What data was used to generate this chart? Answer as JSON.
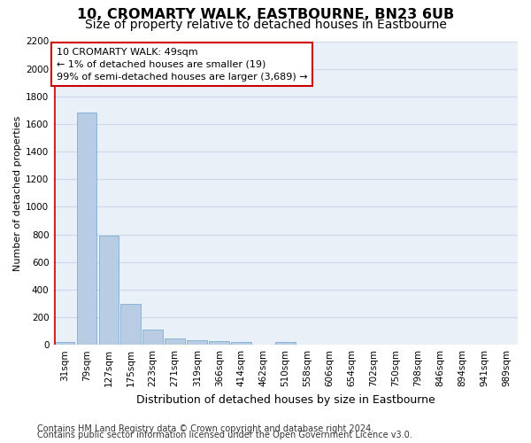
{
  "title": "10, CROMARTY WALK, EASTBOURNE, BN23 6UB",
  "subtitle": "Size of property relative to detached houses in Eastbourne",
  "xlabel": "Distribution of detached houses by size in Eastbourne",
  "ylabel": "Number of detached properties",
  "footnote1": "Contains HM Land Registry data © Crown copyright and database right 2024.",
  "footnote2": "Contains public sector information licensed under the Open Government Licence v3.0.",
  "categories": [
    "31sqm",
    "79sqm",
    "127sqm",
    "175sqm",
    "223sqm",
    "271sqm",
    "319sqm",
    "366sqm",
    "414sqm",
    "462sqm",
    "510sqm",
    "558sqm",
    "606sqm",
    "654sqm",
    "702sqm",
    "750sqm",
    "798sqm",
    "846sqm",
    "894sqm",
    "941sqm",
    "989sqm"
  ],
  "values": [
    19,
    1680,
    790,
    295,
    110,
    45,
    32,
    25,
    22,
    0,
    20,
    0,
    0,
    0,
    0,
    0,
    0,
    0,
    0,
    0,
    0
  ],
  "bar_color": "#b8cce4",
  "bar_edge_color": "#7bafd4",
  "annotation_box_color": "#ffffff",
  "annotation_box_edge": "#cc0000",
  "annotation_line_color": "#cc0000",
  "annotation_text_line1": "10 CROMARTY WALK: 49sqm",
  "annotation_text_line2": "← 1% of detached houses are smaller (19)",
  "annotation_text_line3": "99% of semi-detached houses are larger (3,689) →",
  "ylim": [
    0,
    2200
  ],
  "yticks": [
    0,
    200,
    400,
    600,
    800,
    1000,
    1200,
    1400,
    1600,
    1800,
    2000,
    2200
  ],
  "grid_color": "#d0d8e8",
  "bg_color": "#eaf0f8",
  "title_fontsize": 11.5,
  "subtitle_fontsize": 10,
  "xlabel_fontsize": 9,
  "ylabel_fontsize": 8,
  "tick_fontsize": 7.5,
  "annotation_fontsize": 8,
  "footnote_fontsize": 7
}
